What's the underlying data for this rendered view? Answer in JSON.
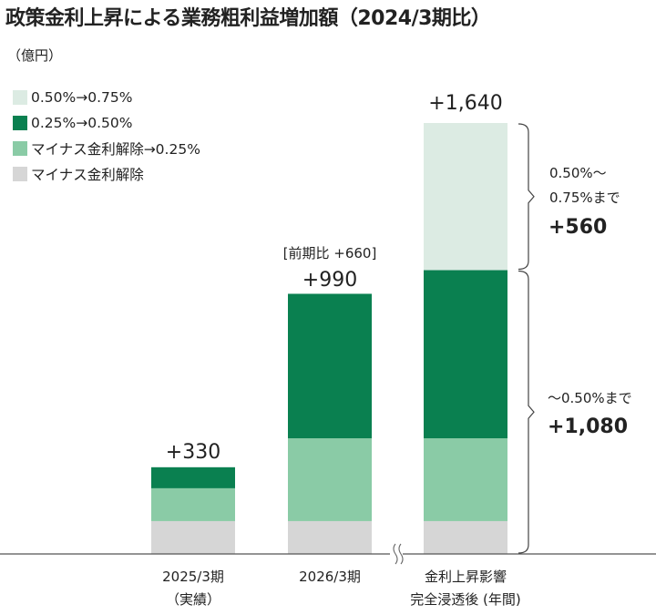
{
  "title": "政策金利上昇による業務粗利益増加額（2024/3期比）",
  "unit": "（億円）",
  "colors": {
    "seg_050_075": "#dcebe3",
    "seg_025_050": "#0a8050",
    "seg_neg_025": "#8acba6",
    "seg_neg": "#d6d6d6"
  },
  "legend": [
    {
      "label": "0.50%→0.75%",
      "color": "#dcebe3"
    },
    {
      "label": "0.25%→0.50%",
      "color": "#0a8050"
    },
    {
      "label": "マイナス金利解除→0.25%",
      "color": "#8acba6"
    },
    {
      "label": "マイナス金利解除",
      "color": "#d6d6d6"
    }
  ],
  "chart_data": {
    "type": "bar",
    "stacked": true,
    "title": "政策金利上昇による業務粗利益増加額（2024/3期比）",
    "ylabel": "（億円）",
    "categories": [
      [
        "2025/3期",
        "（実績）"
      ],
      [
        "2026/3期"
      ],
      [
        "金利上昇影響",
        "完全浸透後 (年間)"
      ]
    ],
    "series": [
      {
        "name": "マイナス金利解除",
        "color": "#d6d6d6",
        "values": [
          125,
          125,
          125
        ]
      },
      {
        "name": "マイナス金利解除→0.25%",
        "color": "#8acba6",
        "values": [
          125,
          315,
          315
        ]
      },
      {
        "name": "0.25%→0.50%",
        "color": "#0a8050",
        "values": [
          80,
          550,
          640
        ]
      },
      {
        "name": "0.50%→0.75%",
        "color": "#dcebe3",
        "values": [
          0,
          0,
          560
        ]
      }
    ],
    "totals": [
      "+330",
      "+990",
      "+1,640"
    ],
    "totals_values": [
      330,
      990,
      1640
    ],
    "annotations": {
      "yoy_note": "[前期比 +660]",
      "upper_bracket": {
        "line1": "0.50%〜",
        "line2": "0.75%まで",
        "value": "+560",
        "covers": [
          1080,
          1640
        ]
      },
      "lower_bracket": {
        "line1": "〜0.50%まで",
        "value": "+1,080",
        "covers": [
          0,
          1080
        ]
      }
    },
    "axis_break": "≈",
    "ylim": [
      0,
      1640
    ]
  }
}
